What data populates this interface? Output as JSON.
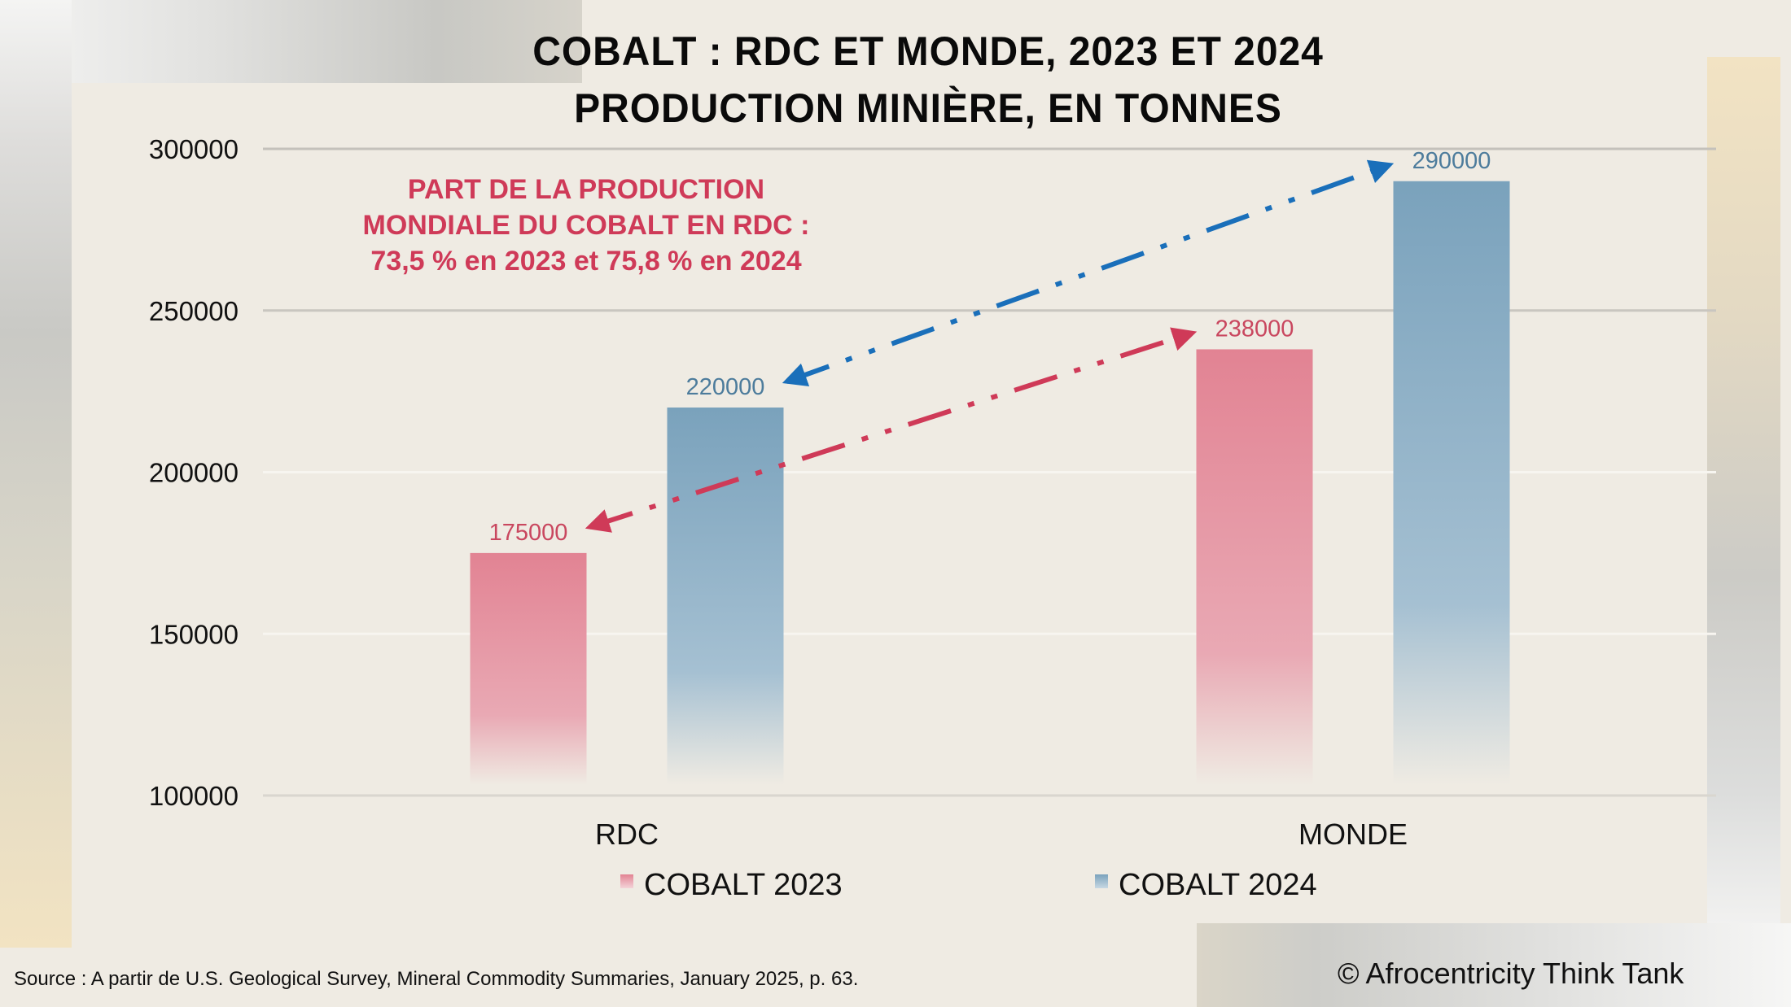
{
  "title": {
    "line1": "COBALT : RDC ET MONDE, 2023 ET 2024",
    "line2": "PRODUCTION MINIÈRE, EN TONNES"
  },
  "annotation": {
    "lines": [
      "PART DE LA PRODUCTION",
      "MONDIALE DU COBALT EN RDC :",
      "73,5 % en 2023 et 75,8 % en 2024"
    ],
    "color": "#cf3a58"
  },
  "footer": {
    "source": "Source : A partir de U.S. Geological Survey, Mineral Commodity Summaries, January 2025, p. 63.",
    "copyright": "© Afrocentricity Think Tank"
  },
  "chart_data": {
    "type": "bar",
    "title": "COBALT : RDC ET MONDE, 2023 ET 2024 — PRODUCTION MINIÈRE, EN TONNES",
    "xlabel": "",
    "ylabel": "",
    "categories": [
      "RDC",
      "MONDE"
    ],
    "series": [
      {
        "name": "COBALT 2023",
        "values": [
          175000,
          238000
        ],
        "color": "#e28393",
        "label_color": "#c9475f"
      },
      {
        "name": "COBALT 2024",
        "values": [
          220000,
          290000
        ],
        "color": "#7ba3bd",
        "label_color": "#4d7c9c"
      }
    ],
    "ylim": [
      100000,
      300000
    ],
    "yticks": [
      100000,
      150000,
      200000,
      250000,
      300000
    ],
    "grid": true,
    "legend": "bottom",
    "arrows": [
      {
        "from": {
          "category": "RDC",
          "series": "COBALT 2023"
        },
        "to": {
          "category": "MONDE",
          "series": "COBALT 2023"
        },
        "color": "#cf3a58",
        "style": "dash-dot",
        "bidirectional": true
      },
      {
        "from": {
          "category": "RDC",
          "series": "COBALT 2024"
        },
        "to": {
          "category": "MONDE",
          "series": "COBALT 2024"
        },
        "color": "#1a6fba",
        "style": "dash-dot",
        "bidirectional": true
      }
    ]
  }
}
